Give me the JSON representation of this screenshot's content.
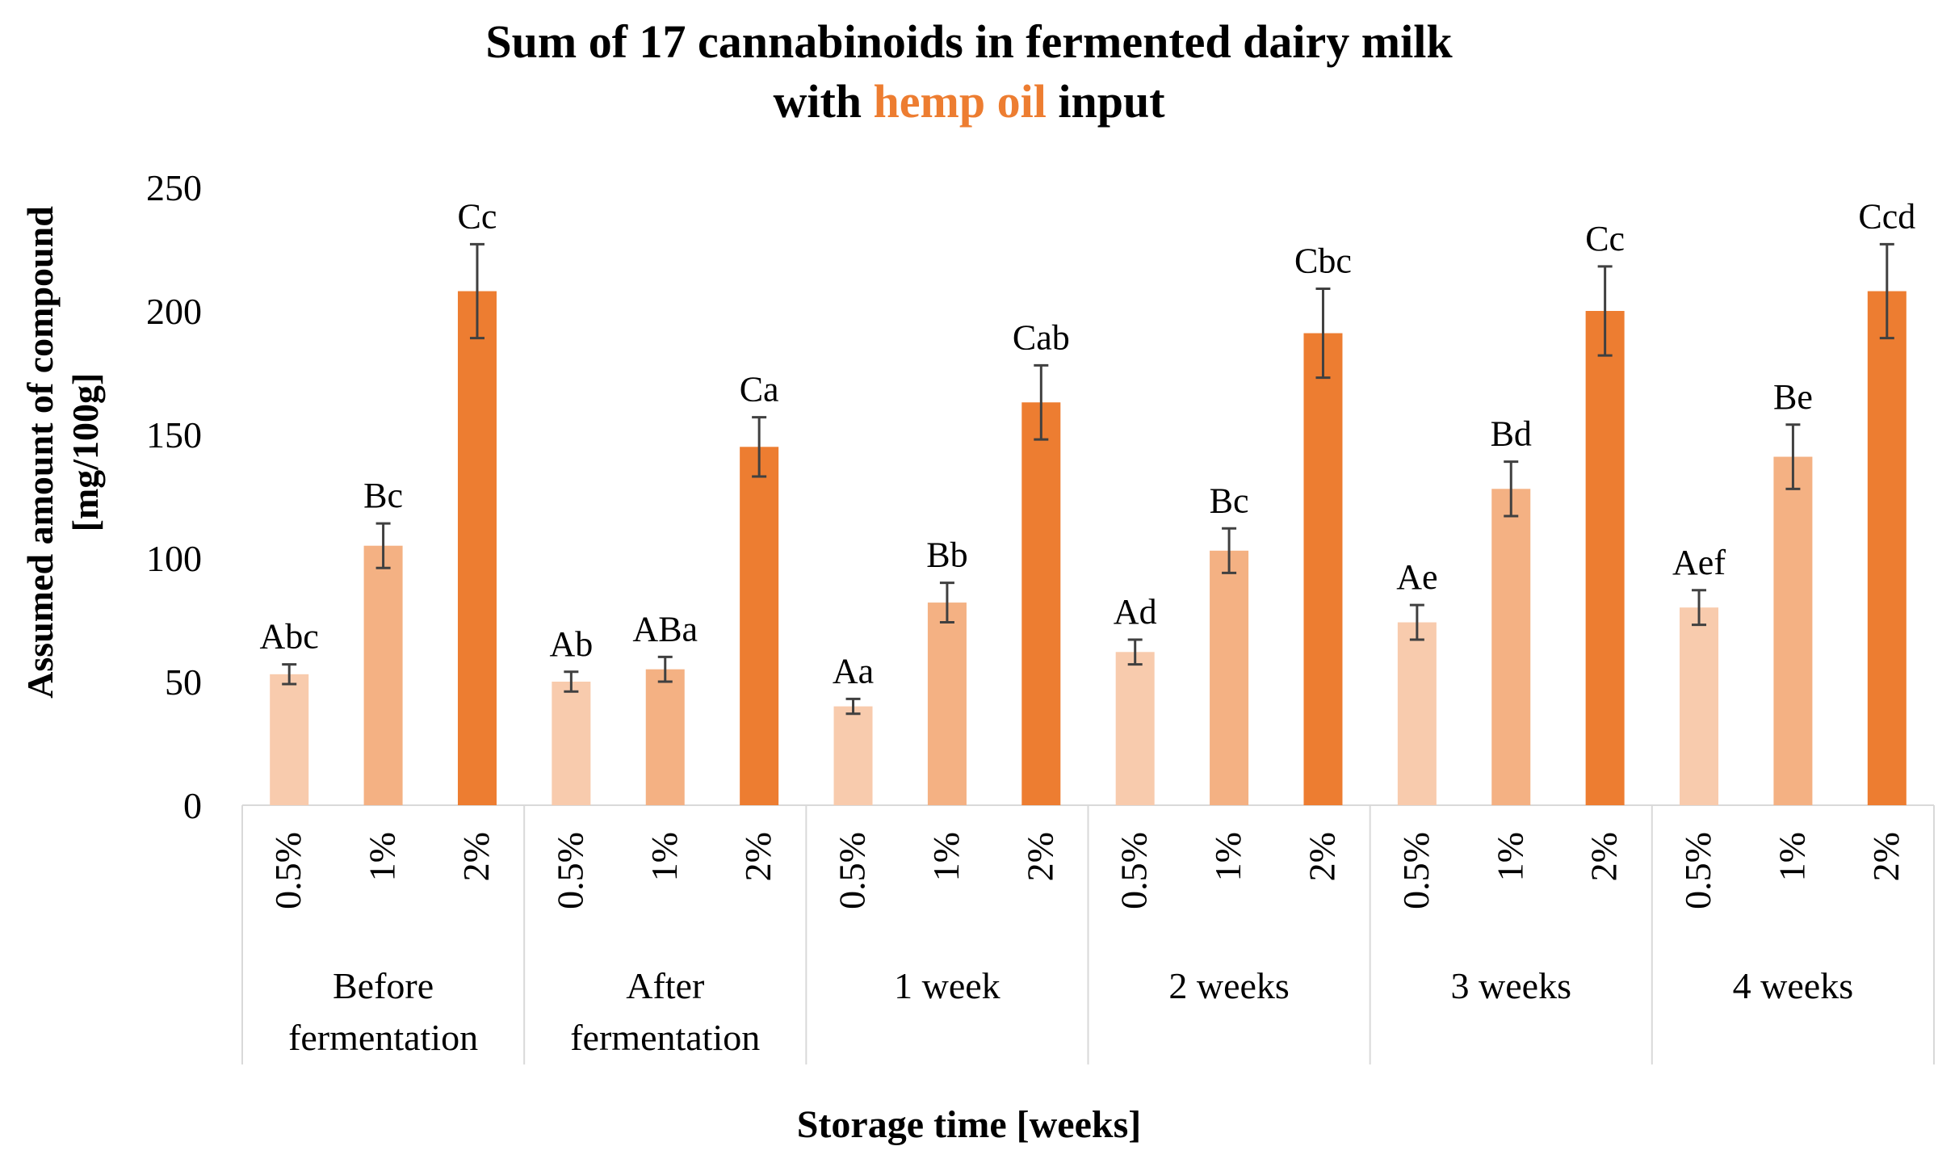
{
  "title": {
    "line1": "Sum of 17 cannabinoids in fermented dairy milk",
    "line2_pre": "with ",
    "line2_accent": "hemp oil",
    "line2_post": " input"
  },
  "colors": {
    "level_0_5": "#F8CBAD",
    "level_1": "#F4B183",
    "level_2": "#ED7D31",
    "accent": "#ED7D31",
    "errorbar": "#404040",
    "grid_line": "#D9D9D9"
  },
  "chart_data": {
    "type": "bar",
    "title": "Sum of 17 cannabinoids in fermented dairy milk with hemp oil input",
    "xlabel": "Storage time [weeks]",
    "ylabel": [
      "Assumed amount of compound",
      "[mg/100g]"
    ],
    "ylim": [
      0,
      250
    ],
    "yticks": [
      0,
      50,
      100,
      150,
      200,
      250
    ],
    "levels": [
      "0.5%",
      "1%",
      "2%"
    ],
    "groups": [
      {
        "name": [
          "Before",
          "fermentation"
        ],
        "values": [
          53,
          105,
          208
        ],
        "errors": [
          4,
          9,
          19
        ],
        "labels": [
          "Abc",
          "Bc",
          "Cc"
        ]
      },
      {
        "name": [
          "After",
          "fermentation"
        ],
        "values": [
          50,
          55,
          145
        ],
        "errors": [
          4,
          5,
          12
        ],
        "labels": [
          "Ab",
          "ABa",
          "Ca"
        ]
      },
      {
        "name": [
          "1 week"
        ],
        "values": [
          40,
          82,
          163
        ],
        "errors": [
          3,
          8,
          15
        ],
        "labels": [
          "Aa",
          "Bb",
          "Cab"
        ]
      },
      {
        "name": [
          "2 weeks"
        ],
        "values": [
          62,
          103,
          191
        ],
        "errors": [
          5,
          9,
          18
        ],
        "labels": [
          "Ad",
          "Bc",
          "Cbc"
        ]
      },
      {
        "name": [
          "3 weeks"
        ],
        "values": [
          74,
          128,
          200
        ],
        "errors": [
          7,
          11,
          18
        ],
        "labels": [
          "Ae",
          "Bd",
          "Cc"
        ]
      },
      {
        "name": [
          "4 weeks"
        ],
        "values": [
          80,
          141,
          208
        ],
        "errors": [
          7,
          13,
          19
        ],
        "labels": [
          "Aef",
          "Be",
          "Ccd"
        ]
      }
    ]
  }
}
